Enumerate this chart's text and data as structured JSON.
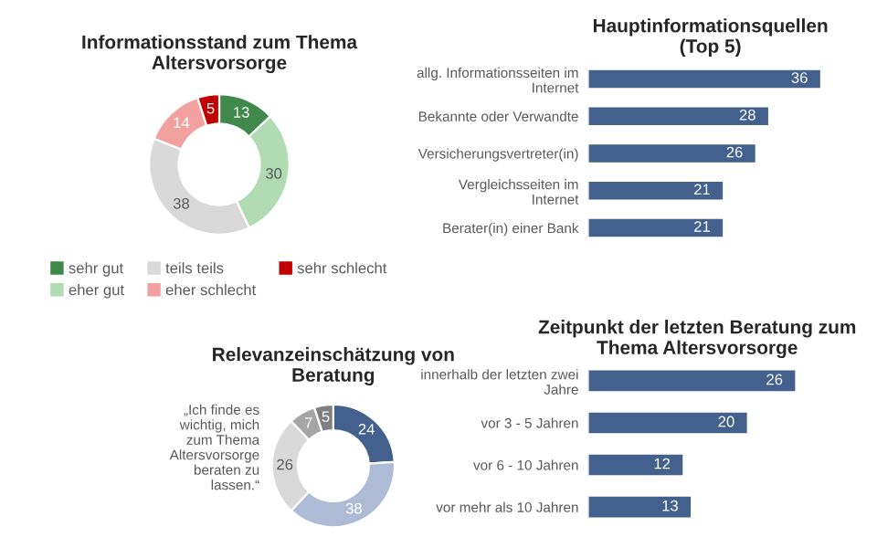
{
  "chart_data": [
    {
      "type": "donut",
      "title": "Informationsstand zum Thema\nAltersvorsorge",
      "categories": [
        "sehr gut",
        "eher gut",
        "teils teils",
        "eher schlecht",
        "sehr schlecht"
      ],
      "values": [
        13,
        30,
        38,
        14,
        5
      ],
      "colors": [
        "#3f8a4a",
        "#b1dbb3",
        "#d9d9d9",
        "#f2a0a0",
        "#c00000"
      ],
      "data_labels": true,
      "legend": "bottom"
    },
    {
      "type": "bar",
      "orientation": "horizontal",
      "title": "Hauptinformationsquellen\n(Top 5)",
      "categories": [
        "allg. Informationsseiten im\nInternet",
        "Bekannte oder Verwandte",
        "Versicherungsvertreter(in)",
        "Vergleichsseiten im\nInternet",
        "Berater(in) einer Bank"
      ],
      "values": [
        36,
        28,
        26,
        21,
        21
      ],
      "color": "#44608c",
      "data_labels": true
    },
    {
      "type": "donut",
      "title": "Relevanzeinschätzung von\nBeratung",
      "categories": [
        null,
        null,
        null,
        null,
        null
      ],
      "values": [
        24,
        38,
        26,
        7,
        5
      ],
      "colors": [
        "#44608c",
        "#adbbd4",
        "#d9d9d9",
        "#a6a6a6",
        "#7f7f7f"
      ],
      "data_labels": true,
      "annotations": [
        "„Ich finde es\nwichtig, mich\nzum Thema\nAltersvorsorge\nberaten zu\nlassen.“"
      ]
    },
    {
      "type": "bar",
      "orientation": "horizontal",
      "title": "Zeitpunkt der letzten Beratung zum\nThema Altersvorsorge",
      "categories": [
        "innerhalb der letzten zwei\nJahre",
        "vor 3 - 5 Jahren",
        "vor 6 - 10 Jahren",
        "vor mehr als 10 Jahren"
      ],
      "values": [
        26,
        20,
        12,
        13
      ],
      "color": "#44608c",
      "data_labels": true
    }
  ]
}
